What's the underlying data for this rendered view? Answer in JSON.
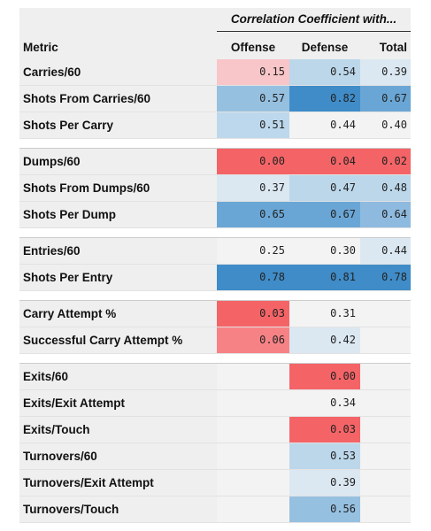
{
  "header": {
    "super_title": "Correlation Coefficient with...",
    "metric_label": "Metric",
    "offense_label": "Offense",
    "defense_label": "Defense",
    "total_label": "Total"
  },
  "groups": [
    {
      "rows": [
        {
          "metric": "Carries/60",
          "offense": "0.15",
          "defense": "0.54",
          "total": "0.39",
          "colors": {
            "offense": "#f8c5c8",
            "defense": "#bcd7ea",
            "total": "#dbe8f2"
          }
        },
        {
          "metric": "Shots From Carries/60",
          "offense": "0.57",
          "defense": "0.82",
          "total": "0.67",
          "colors": {
            "offense": "#96c0e0",
            "defense": "#3f8cc8",
            "total": "#6aa6d5"
          }
        },
        {
          "metric": "Shots Per Carry",
          "offense": "0.51",
          "defense": "0.44",
          "total": "0.40",
          "colors": {
            "offense": "#bdd8ec",
            "defense": "#f3f3f3",
            "total": "#f3f3f3"
          }
        }
      ]
    },
    {
      "rows": [
        {
          "metric": "Dumps/60",
          "offense": "0.00",
          "defense": "0.04",
          "total": "0.02",
          "colors": {
            "offense": "#f46467",
            "defense": "#f46467",
            "total": "#f46467"
          }
        },
        {
          "metric": "Shots From Dumps/60",
          "offense": "0.37",
          "defense": "0.47",
          "total": "0.48",
          "colors": {
            "offense": "#dbe8f2",
            "defense": "#bcd7ea",
            "total": "#bcd7ea"
          }
        },
        {
          "metric": "Shots Per Dump",
          "offense": "0.65",
          "defense": "0.67",
          "total": "0.64",
          "colors": {
            "offense": "#6aa6d5",
            "defense": "#6aa6d5",
            "total": "#8fbadf"
          }
        }
      ]
    },
    {
      "rows": [
        {
          "metric": "Entries/60",
          "offense": "0.25",
          "defense": "0.30",
          "total": "0.44",
          "colors": {
            "offense": "#f3f3f3",
            "defense": "#f3f3f3",
            "total": "#dbe8f2"
          }
        },
        {
          "metric": "Shots Per Entry",
          "offense": "0.78",
          "defense": "0.81",
          "total": "0.78",
          "colors": {
            "offense": "#3f8cc8",
            "defense": "#3f8cc8",
            "total": "#3f8cc8"
          }
        }
      ]
    },
    {
      "rows": [
        {
          "metric": "Carry Attempt %",
          "offense": "0.03",
          "defense": "0.31",
          "total": "",
          "colors": {
            "offense": "#f46467",
            "defense": "#f3f3f3",
            "total": "#f3f3f3"
          }
        },
        {
          "metric": "Successful Carry Attempt %",
          "offense": "0.06",
          "defense": "0.42",
          "total": "",
          "colors": {
            "offense": "#f78285",
            "defense": "#dbe8f2",
            "total": "#f3f3f3"
          }
        }
      ]
    },
    {
      "rows": [
        {
          "metric": "Exits/60",
          "offense": "",
          "defense": "0.00",
          "total": "",
          "colors": {
            "offense": "#f3f3f3",
            "defense": "#f46467",
            "total": "#f3f3f3"
          }
        },
        {
          "metric": "Exits/Exit Attempt",
          "offense": "",
          "defense": "0.34",
          "total": "",
          "colors": {
            "offense": "#f3f3f3",
            "defense": "#f3f3f3",
            "total": "#f3f3f3"
          }
        },
        {
          "metric": "Exits/Touch",
          "offense": "",
          "defense": "0.03",
          "total": "",
          "colors": {
            "offense": "#f3f3f3",
            "defense": "#f46467",
            "total": "#f3f3f3"
          }
        },
        {
          "metric": "Turnovers/60",
          "offense": "",
          "defense": "0.53",
          "total": "",
          "colors": {
            "offense": "#f3f3f3",
            "defense": "#bcd7ea",
            "total": "#f3f3f3"
          }
        },
        {
          "metric": "Turnovers/Exit Attempt",
          "offense": "",
          "defense": "0.39",
          "total": "",
          "colors": {
            "offense": "#f3f3f3",
            "defense": "#dbe8f2",
            "total": "#f3f3f3"
          }
        },
        {
          "metric": "Turnovers/Touch",
          "offense": "",
          "defense": "0.56",
          "total": "",
          "colors": {
            "offense": "#f3f3f3",
            "defense": "#96c0e0",
            "total": "#f3f3f3"
          }
        }
      ]
    }
  ]
}
